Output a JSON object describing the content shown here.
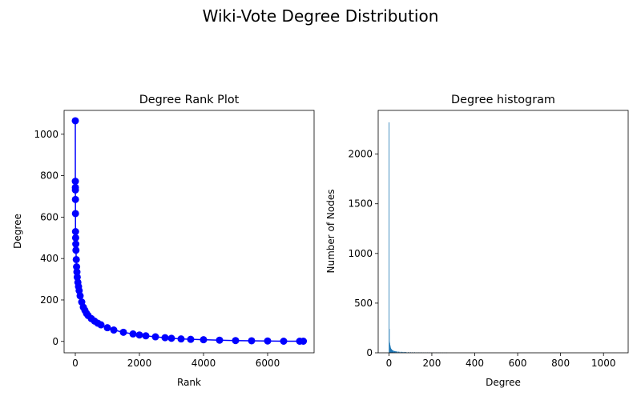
{
  "figure_title": "Wiki-Vote Degree Distribution",
  "chart_data": [
    {
      "type": "line",
      "title": "Degree Rank Plot",
      "xlabel": "Rank",
      "ylabel": "Degree",
      "marker": "circle",
      "color": "#0000ff",
      "xlim": [
        -350,
        7450
      ],
      "ylim": [
        -55,
        1115
      ],
      "xticks": [
        0,
        2000,
        4000,
        6000
      ],
      "xtick_labels": [
        "0",
        "2000",
        "4000",
        "6000"
      ],
      "yticks": [
        0,
        200,
        400,
        600,
        800,
        1000
      ],
      "ytick_labels": [
        "0",
        "200",
        "400",
        "600",
        "800",
        "1000"
      ],
      "grid": false,
      "series": [
        {
          "x": [
            0,
            1,
            2,
            3,
            4,
            5,
            7,
            10,
            15,
            20,
            30,
            40,
            50,
            60,
            80,
            100,
            120,
            150,
            200,
            250,
            300,
            350,
            400,
            500,
            600,
            700,
            800,
            1000,
            1200,
            1500,
            1800,
            2000,
            2200,
            2500,
            2800,
            3000,
            3300,
            3600,
            4000,
            4500,
            5000,
            5500,
            6000,
            6500,
            7000,
            7115
          ],
          "y": [
            1065,
            773,
            743,
            731,
            685,
            617,
            530,
            500,
            470,
            440,
            395,
            360,
            335,
            310,
            285,
            265,
            245,
            220,
            190,
            165,
            150,
            135,
            125,
            110,
            98,
            88,
            80,
            66,
            55,
            44,
            36,
            31,
            27,
            22,
            18,
            15,
            12,
            10,
            8,
            6,
            4,
            3,
            2,
            1,
            1,
            1
          ]
        }
      ]
    },
    {
      "type": "bar",
      "title": "Degree histogram",
      "xlabel": "Degree",
      "ylabel": "Number of Nodes",
      "color": "#1f77b4",
      "xlim": [
        -50,
        1115
      ],
      "ylim": [
        0,
        2440
      ],
      "xticks": [
        0,
        200,
        400,
        600,
        800,
        1000
      ],
      "xtick_labels": [
        "0",
        "200",
        "400",
        "600",
        "800",
        "1000"
      ],
      "yticks": [
        0,
        500,
        1000,
        1500,
        2000
      ],
      "ytick_labels": [
        "0",
        "500",
        "1000",
        "1500",
        "2000"
      ],
      "grid": false,
      "series": [
        {
          "x": [
            1,
            2,
            3,
            4,
            5,
            6,
            7,
            8,
            9,
            10,
            11,
            12,
            13,
            14,
            15,
            16,
            18,
            20,
            22,
            25,
            28,
            30,
            33,
            36,
            40,
            45,
            50,
            55,
            60,
            65,
            70,
            75,
            80,
            90,
            100,
            110,
            120,
            130,
            140,
            150,
            160,
            170,
            180,
            190,
            200,
            210,
            220,
            230,
            240,
            250,
            260,
            270
          ],
          "values": [
            2320,
            240,
            110,
            95,
            80,
            70,
            60,
            50,
            45,
            40,
            38,
            35,
            32,
            30,
            28,
            26,
            24,
            22,
            20,
            18,
            17,
            16,
            15,
            14,
            13,
            12,
            11,
            10,
            10,
            9,
            9,
            8,
            8,
            7,
            7,
            6,
            6,
            5,
            5,
            5,
            4,
            4,
            4,
            3,
            3,
            3,
            3,
            2,
            2,
            2,
            2,
            2
          ]
        }
      ]
    }
  ]
}
